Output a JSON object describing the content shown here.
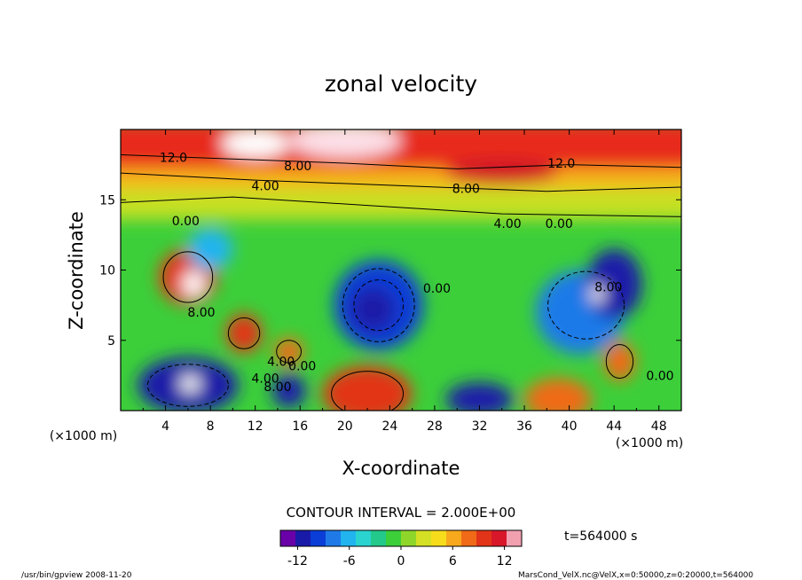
{
  "chart_data": {
    "type": "heatmap",
    "title": "zonal velocity",
    "xlabel": "X-coordinate",
    "ylabel": "Z-coordinate",
    "x_units": "(×1000 m)",
    "y_units": "(×1000 m)",
    "xlim": [
      0,
      50
    ],
    "ylim": [
      0,
      20
    ],
    "x_ticks": [
      4,
      8,
      12,
      16,
      20,
      24,
      28,
      32,
      36,
      40,
      44,
      48
    ],
    "y_ticks": [
      5,
      10,
      15
    ],
    "contour_interval": "CONTOUR INTERVAL = 2.000E+00",
    "time_label": "t=564000 s",
    "colorbar": {
      "range": [
        -14,
        14
      ],
      "ticks": [
        -12,
        -6,
        0,
        6,
        12
      ],
      "colors": [
        "#6a00a8",
        "#1a1aa8",
        "#0a3ed6",
        "#1f7ae8",
        "#21b4ef",
        "#2ad3cf",
        "#23c98a",
        "#3ccf3a",
        "#8fd62a",
        "#d4e024",
        "#f7dc1c",
        "#f7a81c",
        "#f06a17",
        "#e23418",
        "#d8182a",
        "#f2a0b0"
      ]
    },
    "contour_labels": [
      {
        "text": "12.0",
        "x": 4.7,
        "z": 18.0
      },
      {
        "text": "8.00",
        "x": 15.8,
        "z": 17.4
      },
      {
        "text": "12.0",
        "x": 39.3,
        "z": 17.6
      },
      {
        "text": "4.00",
        "x": 12.9,
        "z": 16.0
      },
      {
        "text": "8.00",
        "x": 30.8,
        "z": 15.8
      },
      {
        "text": "0.00",
        "x": 5.8,
        "z": 13.5
      },
      {
        "text": "4.00",
        "x": 34.5,
        "z": 13.3
      },
      {
        "text": "0.00",
        "x": 39.1,
        "z": 13.3
      },
      {
        "text": "0.00",
        "x": 28.2,
        "z": 8.7
      },
      {
        "text": "8.00",
        "x": 43.5,
        "z": 8.8
      },
      {
        "text": "8.00",
        "x": 7.2,
        "z": 7.0
      },
      {
        "text": "4.00",
        "x": 14.3,
        "z": 3.5
      },
      {
        "text": "0.00",
        "x": 16.2,
        "z": 3.2
      },
      {
        "text": "4.00",
        "x": 12.9,
        "z": 2.3
      },
      {
        "text": "8.00",
        "x": 14.0,
        "z": 1.7
      },
      {
        "text": "0.00",
        "x": 48.1,
        "z": 2.5
      }
    ]
  },
  "footer": {
    "left": "/usr/bin/gpview  2008-11-20",
    "right": "MarsCond_VelX.nc@VelX,x=0:50000,z=0:20000,t=564000"
  }
}
